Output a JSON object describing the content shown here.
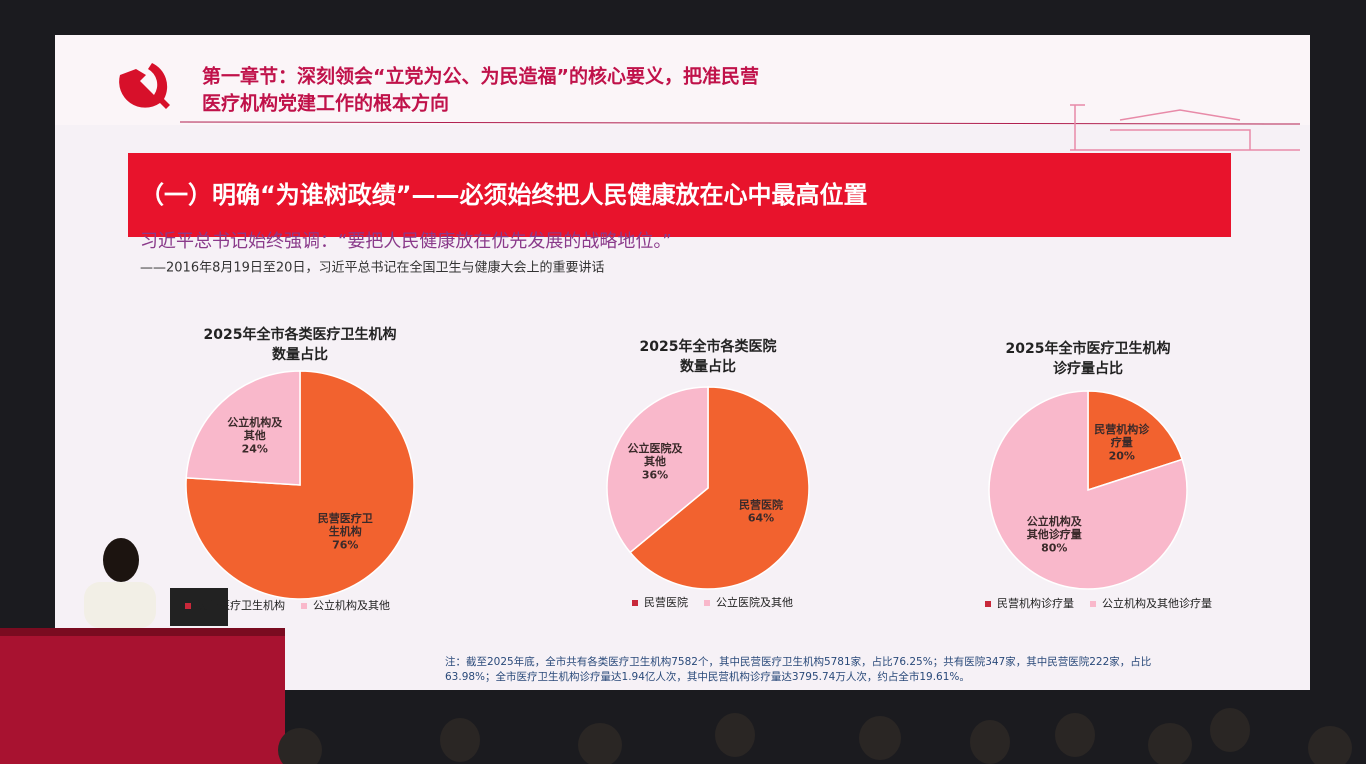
{
  "slide": {
    "chapter_title": [
      "第一章节：深刻领会“立党为公、为民造福”的核心要义，把准民营",
      "医疗机构党建工作的根本方向"
    ],
    "section_banner": "（一）明确“为谁树政绩”——必须始终把人民健康放在心中最高位置",
    "quote": "习近平总书记始终强调：“要把人民健康放在优先发展的战略地位。”",
    "source": "——2016年8月19日至20日，习近平总书记在全国卫生与健康大会上的重要讲话",
    "note": [
      "注：截至2025年底，全市共有各类医疗卫生机构7582个，其中民营医疗卫生机构5781家，占比76.25%；共有医院347家，其中民营医院222家，占比",
      "63.98%；全市医疗卫生机构诊疗量达1.94亿人次，其中民营机构诊疗量达3795.74万人次，约占全市19.61%。"
    ]
  },
  "chart_data": [
    {
      "type": "pie",
      "title": [
        "2025年全市各类医疗卫生机构",
        "数量占比"
      ],
      "categories": [
        "民营医疗卫生机构",
        "公立机构及其他"
      ],
      "values": [
        76,
        24
      ],
      "value_labels": [
        "76%",
        "24%"
      ],
      "colors": [
        "#f2622f",
        "#f9b8cb"
      ]
    },
    {
      "type": "pie",
      "title": [
        "2025年全市各类医院",
        "数量占比"
      ],
      "categories": [
        "民营医院",
        "公立医院及其他"
      ],
      "values": [
        64,
        36
      ],
      "value_labels": [
        "64%",
        "36%"
      ],
      "colors": [
        "#f2622f",
        "#f9b8cb"
      ]
    },
    {
      "type": "pie",
      "title": [
        "2025年全市医疗卫生机构",
        "诊疗量占比"
      ],
      "categories": [
        "民营机构诊疗量",
        "公立机构及其他诊疗量"
      ],
      "values": [
        20,
        80
      ],
      "value_labels": [
        "20%",
        "80%"
      ],
      "colors": [
        "#f2622f",
        "#f9b8cb"
      ]
    }
  ]
}
